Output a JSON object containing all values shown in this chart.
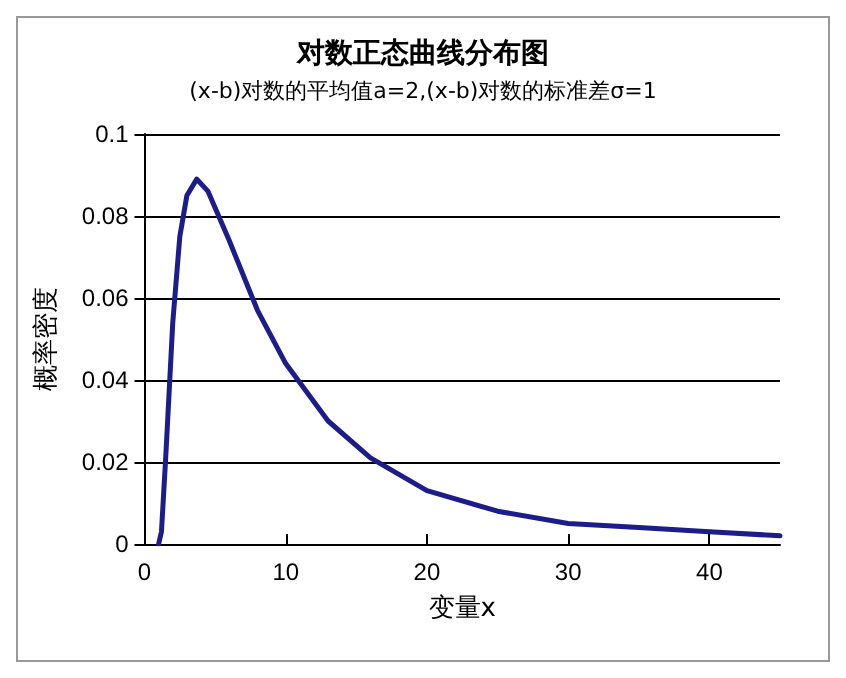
{
  "chart_data": {
    "type": "line",
    "title": "对数正态曲线分布图",
    "subtitle": "(x-b)对数的平均值a=2,(x-b)对数的标准差σ=1",
    "xlabel": "变量x",
    "ylabel": "概率密度",
    "x": [
      1,
      1.2,
      1.5,
      2,
      2.5,
      3,
      3.7,
      4.5,
      6,
      8,
      10,
      13,
      16,
      20,
      25,
      30,
      35,
      40,
      45
    ],
    "series": [
      {
        "color": "#1c1c8a",
        "values": [
          0,
          0.003,
          0.021,
          0.054,
          0.075,
          0.085,
          0.089,
          0.086,
          0.074,
          0.057,
          0.044,
          0.03,
          0.021,
          0.013,
          0.008,
          0.005,
          0.004,
          0.003,
          0.002
        ]
      }
    ],
    "xlim": [
      0,
      45
    ],
    "xticks": [
      0,
      10,
      20,
      30,
      40
    ],
    "ylim": [
      0,
      0.1
    ],
    "yticks": [
      0,
      0.02,
      0.04,
      0.06,
      0.08,
      0.1
    ],
    "grid": "y",
    "marker": "none",
    "line_style": "solid"
  }
}
